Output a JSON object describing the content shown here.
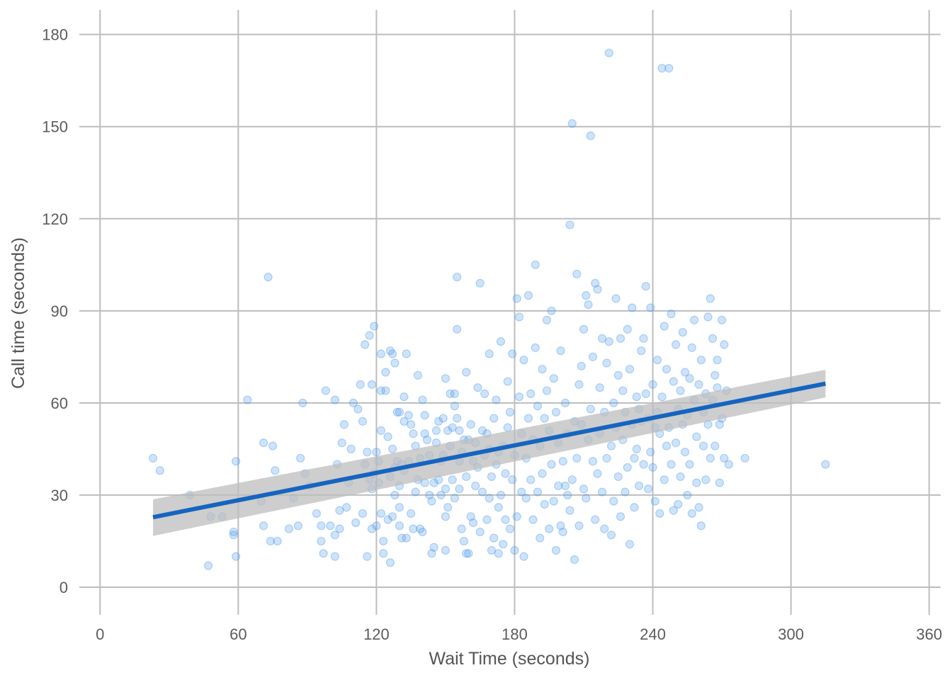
{
  "chart_data": {
    "type": "scatter",
    "xlabel": "Wait Time (seconds)",
    "ylabel": "Call time (seconds)",
    "xlim": [
      -9,
      365
    ],
    "ylim": [
      -9,
      188
    ],
    "x_ticks": [
      0,
      60,
      120,
      180,
      240,
      300,
      360
    ],
    "y_ticks": [
      0,
      30,
      60,
      90,
      120,
      150,
      180
    ],
    "grid": true,
    "colors": {
      "points": "#5aa3f0",
      "trend_line": "#1565c0",
      "confidence_band": "#bebebe",
      "grid": "#bdbdbd"
    },
    "trend_line": {
      "type": "linear",
      "x": [
        23,
        315
      ],
      "y": [
        22.8,
        66.3
      ],
      "ci_lower": [
        16.7,
        61.8
      ],
      "ci_upper": [
        28.6,
        70.8
      ]
    },
    "points": [
      [
        23,
        42
      ],
      [
        26,
        38
      ],
      [
        39,
        30
      ],
      [
        47,
        7
      ],
      [
        48,
        23
      ],
      [
        53,
        23
      ],
      [
        58,
        18
      ],
      [
        58,
        17
      ],
      [
        59,
        41
      ],
      [
        59,
        10
      ],
      [
        64,
        61
      ],
      [
        70,
        28
      ],
      [
        71,
        47
      ],
      [
        71,
        20
      ],
      [
        73,
        101
      ],
      [
        74,
        15
      ],
      [
        75,
        46
      ],
      [
        77,
        15
      ],
      [
        76,
        38
      ],
      [
        82,
        19
      ],
      [
        84,
        29
      ],
      [
        86,
        20
      ],
      [
        87,
        42
      ],
      [
        88,
        60
      ],
      [
        89,
        37
      ],
      [
        91,
        33
      ],
      [
        94,
        24
      ],
      [
        96,
        15
      ],
      [
        97,
        11
      ],
      [
        96,
        20
      ],
      [
        98,
        64
      ],
      [
        100,
        20
      ],
      [
        102,
        10
      ],
      [
        102,
        61
      ],
      [
        102,
        17
      ],
      [
        103,
        40
      ],
      [
        104,
        19
      ],
      [
        104,
        25
      ],
      [
        105,
        47
      ],
      [
        106,
        53
      ],
      [
        107,
        26
      ],
      [
        108,
        34
      ],
      [
        109,
        45
      ],
      [
        110,
        60
      ],
      [
        111,
        21
      ],
      [
        112,
        58
      ],
      [
        113,
        66
      ],
      [
        114,
        24
      ],
      [
        114,
        54
      ],
      [
        115,
        40
      ],
      [
        115,
        79
      ],
      [
        116,
        44
      ],
      [
        116,
        10
      ],
      [
        117,
        82
      ],
      [
        117,
        35
      ],
      [
        118,
        19
      ],
      [
        118,
        66
      ],
      [
        118,
        32
      ],
      [
        119,
        85
      ],
      [
        119,
        37
      ],
      [
        120,
        20
      ],
      [
        120,
        44
      ],
      [
        121,
        34
      ],
      [
        121,
        41
      ],
      [
        122,
        24
      ],
      [
        122,
        64
      ],
      [
        122,
        76
      ],
      [
        122,
        51
      ],
      [
        123,
        15
      ],
      [
        123,
        11
      ],
      [
        124,
        70
      ],
      [
        124,
        64
      ],
      [
        125,
        22
      ],
      [
        125,
        49
      ],
      [
        126,
        8
      ],
      [
        126,
        36
      ],
      [
        126,
        77
      ],
      [
        127,
        45
      ],
      [
        127,
        23
      ],
      [
        127,
        76
      ],
      [
        128,
        73
      ],
      [
        128,
        30
      ],
      [
        128,
        39
      ],
      [
        129,
        41
      ],
      [
        129,
        57
      ],
      [
        130,
        33
      ],
      [
        130,
        20
      ],
      [
        130,
        26
      ],
      [
        130,
        57
      ],
      [
        131,
        40
      ],
      [
        131,
        16
      ],
      [
        132,
        62
      ],
      [
        132,
        54
      ],
      [
        132,
        38
      ],
      [
        133,
        76
      ],
      [
        133,
        16
      ],
      [
        134,
        41
      ],
      [
        134,
        56
      ],
      [
        135,
        24
      ],
      [
        135,
        53
      ],
      [
        136,
        50
      ],
      [
        136,
        19
      ],
      [
        137,
        31
      ],
      [
        137,
        46
      ],
      [
        138,
        69
      ],
      [
        138,
        35
      ],
      [
        139,
        19
      ],
      [
        139,
        42
      ],
      [
        140,
        18
      ],
      [
        140,
        61
      ],
      [
        141,
        56
      ],
      [
        141,
        50
      ],
      [
        141,
        34
      ],
      [
        142,
        48
      ],
      [
        143,
        43
      ],
      [
        143,
        30
      ],
      [
        144,
        11
      ],
      [
        144,
        28
      ],
      [
        145,
        13
      ],
      [
        145,
        34
      ],
      [
        146,
        47
      ],
      [
        146,
        51
      ],
      [
        147,
        54
      ],
      [
        147,
        35
      ],
      [
        148,
        41
      ],
      [
        148,
        30
      ],
      [
        149,
        55
      ],
      [
        149,
        43
      ],
      [
        150,
        32
      ],
      [
        150,
        23
      ],
      [
        150,
        68
      ],
      [
        150,
        12
      ],
      [
        151,
        26
      ],
      [
        151,
        51
      ],
      [
        152,
        63
      ],
      [
        152,
        46
      ],
      [
        153,
        35
      ],
      [
        153,
        52
      ],
      [
        154,
        63
      ],
      [
        154,
        59
      ],
      [
        154,
        29
      ],
      [
        155,
        55
      ],
      [
        155,
        101
      ],
      [
        155,
        84
      ],
      [
        156,
        51
      ],
      [
        156,
        32
      ],
      [
        156,
        41
      ],
      [
        157,
        19
      ],
      [
        157,
        44
      ],
      [
        158,
        15
      ],
      [
        158,
        48
      ],
      [
        159,
        11
      ],
      [
        159,
        36
      ],
      [
        159,
        70
      ],
      [
        160,
        11
      ],
      [
        160,
        48
      ],
      [
        161,
        23
      ],
      [
        161,
        53
      ],
      [
        162,
        41
      ],
      [
        162,
        21
      ],
      [
        163,
        33
      ],
      [
        163,
        47
      ],
      [
        164,
        65
      ],
      [
        164,
        39
      ],
      [
        165,
        99
      ],
      [
        165,
        18
      ],
      [
        166,
        31
      ],
      [
        166,
        51
      ],
      [
        167,
        43
      ],
      [
        167,
        63
      ],
      [
        168,
        22
      ],
      [
        168,
        50
      ],
      [
        169,
        45
      ],
      [
        169,
        29
      ],
      [
        169,
        76
      ],
      [
        170,
        12
      ],
      [
        170,
        36
      ],
      [
        171,
        16
      ],
      [
        171,
        55
      ],
      [
        172,
        40
      ],
      [
        172,
        61
      ],
      [
        173,
        11
      ],
      [
        173,
        26
      ],
      [
        173,
        44
      ],
      [
        174,
        80
      ],
      [
        174,
        30
      ],
      [
        175,
        46
      ],
      [
        175,
        14
      ],
      [
        176,
        22
      ],
      [
        176,
        37
      ],
      [
        177,
        67
      ],
      [
        177,
        52
      ],
      [
        178,
        19
      ],
      [
        178,
        57
      ],
      [
        179,
        35
      ],
      [
        179,
        76
      ],
      [
        180,
        12
      ],
      [
        180,
        43
      ],
      [
        181,
        23
      ],
      [
        181,
        94
      ],
      [
        182,
        62
      ],
      [
        182,
        88
      ],
      [
        183,
        31
      ],
      [
        183,
        50
      ],
      [
        184,
        74
      ],
      [
        184,
        10
      ],
      [
        185,
        42
      ],
      [
        185,
        29
      ],
      [
        186,
        95
      ],
      [
        186,
        55
      ],
      [
        187,
        35
      ],
      [
        187,
        63
      ],
      [
        188,
        22
      ],
      [
        188,
        48
      ],
      [
        189,
        105
      ],
      [
        189,
        78
      ],
      [
        190,
        31
      ],
      [
        190,
        59
      ],
      [
        191,
        16
      ],
      [
        191,
        46
      ],
      [
        192,
        71
      ],
      [
        192,
        37
      ],
      [
        193,
        55
      ],
      [
        193,
        27
      ],
      [
        194,
        87
      ],
      [
        194,
        64
      ],
      [
        195,
        19
      ],
      [
        195,
        51
      ],
      [
        196,
        90
      ],
      [
        196,
        40
      ],
      [
        197,
        68
      ],
      [
        197,
        28
      ],
      [
        198,
        12
      ],
      [
        198,
        57
      ],
      [
        199,
        33
      ],
      [
        199,
        47
      ],
      [
        200,
        20
      ],
      [
        200,
        77
      ],
      [
        201,
        41
      ],
      [
        201,
        18
      ],
      [
        202,
        60
      ],
      [
        202,
        33
      ],
      [
        203,
        30
      ],
      [
        203,
        50
      ],
      [
        204,
        118
      ],
      [
        204,
        25
      ],
      [
        205,
        151
      ],
      [
        205,
        35
      ],
      [
        206,
        54
      ],
      [
        206,
        9
      ],
      [
        207,
        102
      ],
      [
        207,
        42
      ],
      [
        208,
        66
      ],
      [
        208,
        20
      ],
      [
        209,
        72
      ],
      [
        209,
        53
      ],
      [
        210,
        84
      ],
      [
        210,
        32
      ],
      [
        211,
        95
      ],
      [
        211,
        29
      ],
      [
        212,
        92
      ],
      [
        212,
        48
      ],
      [
        213,
        58
      ],
      [
        213,
        147
      ],
      [
        214,
        75
      ],
      [
        214,
        41
      ],
      [
        215,
        99
      ],
      [
        215,
        22
      ],
      [
        216,
        97
      ],
      [
        216,
        37
      ],
      [
        217,
        65
      ],
      [
        217,
        50
      ],
      [
        218,
        81
      ],
      [
        218,
        31
      ],
      [
        219,
        57
      ],
      [
        219,
        19
      ],
      [
        220,
        73
      ],
      [
        220,
        42
      ],
      [
        221,
        80
      ],
      [
        221,
        174
      ],
      [
        222,
        46
      ],
      [
        222,
        17
      ],
      [
        223,
        60
      ],
      [
        223,
        28
      ],
      [
        224,
        94
      ],
      [
        224,
        52
      ],
      [
        225,
        69
      ],
      [
        225,
        36
      ],
      [
        226,
        81
      ],
      [
        226,
        23
      ],
      [
        227,
        48
      ],
      [
        227,
        64
      ],
      [
        228,
        31
      ],
      [
        228,
        57
      ],
      [
        229,
        84
      ],
      [
        229,
        39
      ],
      [
        230,
        14
      ],
      [
        230,
        71
      ],
      [
        231,
        53
      ],
      [
        231,
        91
      ],
      [
        232,
        42
      ],
      [
        232,
        26
      ],
      [
        233,
        62
      ],
      [
        233,
        45
      ],
      [
        234,
        58
      ],
      [
        234,
        33
      ],
      [
        235,
        77
      ],
      [
        235,
        54
      ],
      [
        236,
        40
      ],
      [
        236,
        81
      ],
      [
        237,
        98
      ],
      [
        237,
        63
      ],
      [
        238,
        55
      ],
      [
        238,
        32
      ],
      [
        239,
        91
      ],
      [
        239,
        44
      ],
      [
        240,
        66
      ],
      [
        240,
        39
      ],
      [
        241,
        52
      ],
      [
        241,
        28
      ],
      [
        242,
        74
      ],
      [
        242,
        57
      ],
      [
        243,
        50
      ],
      [
        243,
        24
      ],
      [
        244,
        169
      ],
      [
        244,
        62
      ],
      [
        245,
        85
      ],
      [
        245,
        35
      ],
      [
        246,
        71
      ],
      [
        246,
        46
      ],
      [
        247,
        169
      ],
      [
        247,
        52
      ],
      [
        248,
        89
      ],
      [
        248,
        40
      ],
      [
        249,
        67
      ],
      [
        249,
        25
      ],
      [
        250,
        79
      ],
      [
        250,
        47
      ],
      [
        251,
        58
      ],
      [
        251,
        27
      ],
      [
        252,
        64
      ],
      [
        252,
        36
      ],
      [
        253,
        83
      ],
      [
        253,
        53
      ],
      [
        254,
        70
      ],
      [
        254,
        44
      ],
      [
        255,
        56
      ],
      [
        255,
        30
      ],
      [
        256,
        68
      ],
      [
        256,
        40
      ],
      [
        257,
        78
      ],
      [
        257,
        24
      ],
      [
        258,
        87
      ],
      [
        258,
        61
      ],
      [
        259,
        34
      ],
      [
        259,
        49
      ],
      [
        260,
        66
      ],
      [
        260,
        26
      ],
      [
        261,
        74
      ],
      [
        261,
        20
      ],
      [
        262,
        57
      ],
      [
        262,
        46
      ],
      [
        263,
        63
      ],
      [
        263,
        35
      ],
      [
        264,
        88
      ],
      [
        264,
        53
      ],
      [
        265,
        94
      ],
      [
        265,
        42
      ],
      [
        266,
        81
      ],
      [
        266,
        61
      ],
      [
        267,
        69
      ],
      [
        267,
        46
      ],
      [
        268,
        74
      ],
      [
        268,
        65
      ],
      [
        269,
        34
      ],
      [
        269,
        53
      ],
      [
        270,
        87
      ],
      [
        270,
        55
      ],
      [
        271,
        79
      ],
      [
        271,
        42
      ],
      [
        272,
        64
      ],
      [
        273,
        40
      ],
      [
        280,
        42
      ],
      [
        315,
        40
      ]
    ]
  }
}
